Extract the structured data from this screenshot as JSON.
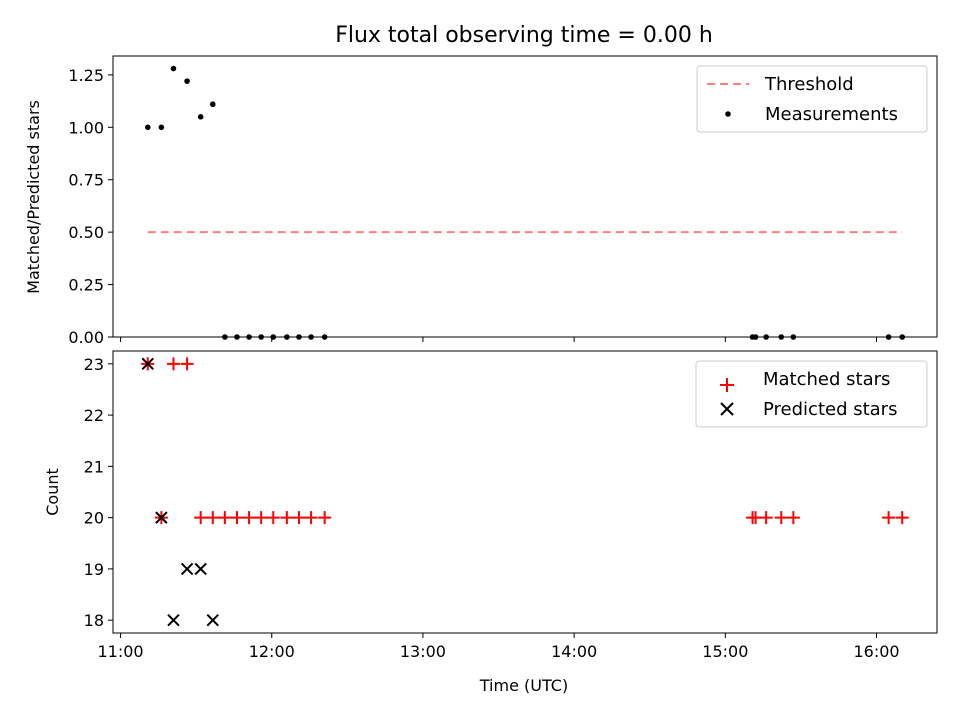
{
  "title": "Flux total observing time = 0.00 h",
  "chart_data": [
    {
      "type": "scatter",
      "ylabel": "Matched/Predicted stars",
      "xlim": [
        10.95,
        16.4
      ],
      "ylim": [
        0,
        1.34
      ],
      "yticks": [
        0.0,
        0.25,
        0.5,
        0.75,
        1.0,
        1.25
      ],
      "ytick_labels": [
        "0.00",
        "0.25",
        "0.50",
        "0.75",
        "1.00",
        "1.25"
      ],
      "legend_position": "upper right",
      "legend": [
        "Threshold",
        "Measurements"
      ],
      "threshold": {
        "name": "Threshold",
        "y": 0.5,
        "x_start": 11.18,
        "x_end": 16.17,
        "color": "#ff7f7f",
        "style": "dashed"
      },
      "series": [
        {
          "name": "Measurements",
          "marker": "dot",
          "color": "#000000",
          "x": [
            11.18,
            11.27,
            11.35,
            11.44,
            11.53,
            11.61,
            11.69,
            11.77,
            11.85,
            11.93,
            12.01,
            12.1,
            12.18,
            12.26,
            12.35,
            15.18,
            15.2,
            15.27,
            15.37,
            15.45,
            16.08,
            16.17
          ],
          "y": [
            1.0,
            1.0,
            1.28,
            1.22,
            1.05,
            1.11,
            0,
            0,
            0,
            0,
            0,
            0,
            0,
            0,
            0,
            0,
            0,
            0,
            0,
            0,
            0,
            0
          ]
        }
      ]
    },
    {
      "type": "scatter",
      "xlabel": "Time (UTC)",
      "ylabel": "Count",
      "xlim": [
        10.95,
        16.4
      ],
      "ylim": [
        17.75,
        23.25
      ],
      "yticks": [
        18,
        19,
        20,
        21,
        22,
        23
      ],
      "xticks": [
        11,
        12,
        13,
        14,
        15,
        16
      ],
      "xtick_labels": [
        "11:00",
        "12:00",
        "13:00",
        "14:00",
        "15:00",
        "16:00"
      ],
      "legend_position": "upper right",
      "legend": [
        "Matched stars",
        "Predicted stars"
      ],
      "series": [
        {
          "name": "Matched stars",
          "marker": "plus",
          "color": "#ff0000",
          "x": [
            11.18,
            11.27,
            11.35,
            11.44,
            11.53,
            11.61,
            11.69,
            11.77,
            11.85,
            11.93,
            12.01,
            12.1,
            12.18,
            12.26,
            12.35,
            15.18,
            15.2,
            15.27,
            15.37,
            15.45,
            16.08,
            16.17
          ],
          "y": [
            23,
            20,
            23,
            23,
            20,
            20,
            20,
            20,
            20,
            20,
            20,
            20,
            20,
            20,
            20,
            20,
            20,
            20,
            20,
            20,
            20,
            20
          ]
        },
        {
          "name": "Predicted stars",
          "marker": "x",
          "color": "#000000",
          "x": [
            11.18,
            11.27,
            11.35,
            11.44,
            11.53,
            11.61
          ],
          "y": [
            23,
            20,
            18,
            19,
            19,
            18
          ]
        }
      ]
    }
  ]
}
